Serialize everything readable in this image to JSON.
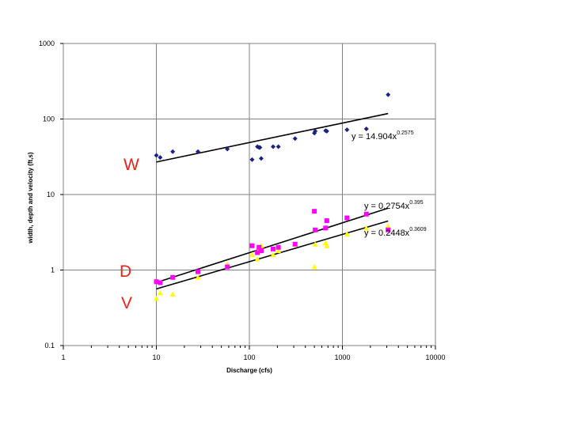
{
  "chart_data": {
    "type": "scatter",
    "title": "",
    "xlabel": "Discharge (cfs)",
    "ylabel": "width, depth and velocity (ft,s)",
    "x_scale": "log",
    "y_scale": "log",
    "xlim": [
      1,
      10000
    ],
    "ylim": [
      0.1,
      1000
    ],
    "x_ticks": [
      "1",
      "10",
      "100",
      "1000",
      "10000"
    ],
    "y_ticks": [
      "1000",
      "100",
      "10",
      "1",
      "0.1"
    ],
    "grid": "major gridlines on both axes",
    "series": [
      {
        "name": "W",
        "color": "#1a237e",
        "marker": "diamond",
        "points": [
          [
            10,
            33
          ],
          [
            11,
            31
          ],
          [
            15,
            37
          ],
          [
            28,
            37
          ],
          [
            58,
            40
          ],
          [
            107,
            29
          ],
          [
            122,
            43
          ],
          [
            127,
            42
          ],
          [
            130,
            42
          ],
          [
            134,
            30
          ],
          [
            180,
            43
          ],
          [
            205,
            43
          ],
          [
            310,
            55
          ],
          [
            500,
            65
          ],
          [
            510,
            69
          ],
          [
            660,
            70
          ],
          [
            680,
            69
          ],
          [
            1120,
            72
          ],
          [
            1810,
            74
          ],
          [
            3100,
            210
          ]
        ],
        "fit": {
          "equation": "y = 14.904x^0.2575",
          "coefficient": 14.904,
          "exponent": 0.2575,
          "x_range": [
            10,
            3100
          ]
        }
      },
      {
        "name": "D",
        "color": "#ff00ff",
        "marker": "square",
        "points": [
          [
            10,
            0.7
          ],
          [
            11,
            0.68
          ],
          [
            15,
            0.8
          ],
          [
            28,
            0.95
          ],
          [
            58,
            1.1
          ],
          [
            107,
            2.1
          ],
          [
            122,
            1.7
          ],
          [
            127,
            2.0
          ],
          [
            134,
            1.8
          ],
          [
            180,
            1.9
          ],
          [
            205,
            2.0
          ],
          [
            310,
            2.2
          ],
          [
            500,
            6.0
          ],
          [
            510,
            3.4
          ],
          [
            660,
            3.6
          ],
          [
            680,
            4.5
          ],
          [
            1120,
            4.9
          ],
          [
            1810,
            5.5
          ],
          [
            3100,
            3.4
          ]
        ],
        "fit": {
          "equation": "y = 0.2754x^0.395",
          "coefficient": 0.2754,
          "exponent": 0.395,
          "x_range": [
            10,
            3100
          ]
        }
      },
      {
        "name": "V",
        "color": "#ffff00",
        "marker": "triangle",
        "points": [
          [
            10,
            0.42
          ],
          [
            11,
            0.5
          ],
          [
            15,
            0.48
          ],
          [
            28,
            0.8
          ],
          [
            58,
            1.2
          ],
          [
            107,
            1.6
          ],
          [
            122,
            1.4
          ],
          [
            127,
            1.9
          ],
          [
            134,
            2.1
          ],
          [
            180,
            1.6
          ],
          [
            205,
            1.8
          ],
          [
            310,
            2.2
          ],
          [
            500,
            1.1
          ],
          [
            510,
            2.2
          ],
          [
            660,
            2.3
          ],
          [
            680,
            2.1
          ],
          [
            1120,
            3.0
          ],
          [
            1810,
            3.6
          ],
          [
            3100,
            3.8
          ]
        ],
        "fit": {
          "equation": "y = 0.2448x^0.3609",
          "coefficient": 0.2448,
          "exponent": 0.3609,
          "x_range": [
            10,
            3100
          ]
        }
      }
    ],
    "annotations": {
      "w_equation_base": "y = 14.904x",
      "w_equation_exp": "0.2575",
      "d_equation_base": "y = 0.2754x",
      "d_equation_exp": "0.395",
      "v_equation_base": "y = 0.2448x",
      "v_equation_exp": "0.3609"
    },
    "series_letters": [
      "W",
      "D",
      "V"
    ]
  }
}
